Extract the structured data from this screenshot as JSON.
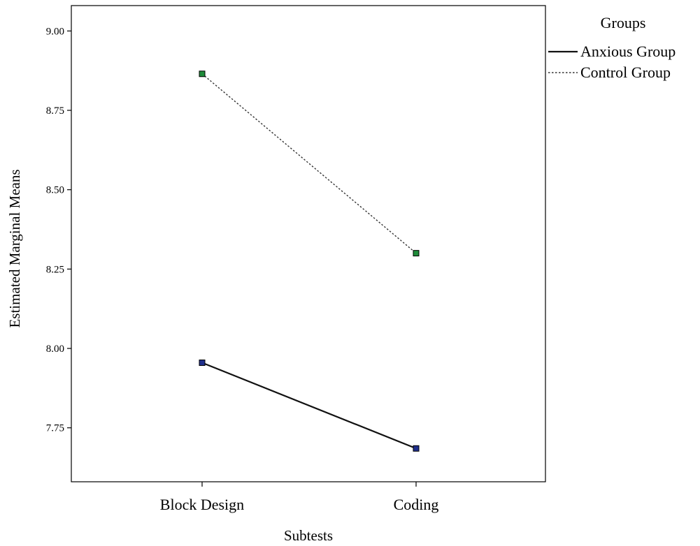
{
  "chart_data": {
    "type": "line",
    "categories": [
      "Block Design",
      "Coding"
    ],
    "series": [
      {
        "name": "Anxious Group",
        "values": [
          7.955,
          7.685
        ],
        "line_style": "solid",
        "marker_color": "#1f2f8c"
      },
      {
        "name": "Control Group",
        "values": [
          8.865,
          8.3
        ],
        "line_style": "dotted",
        "marker_color": "#1f8c3a"
      }
    ],
    "xlabel": "Subtests",
    "ylabel": "Estimated Marginal Means",
    "ylim": [
      7.58,
      9.08
    ],
    "yticks": [
      7.75,
      8.0,
      8.25,
      8.5,
      8.75,
      9.0
    ],
    "ytick_labels": [
      "7.75",
      "8.00",
      "8.25",
      "8.50",
      "8.75",
      "9.00"
    ],
    "legend": {
      "title": "Groups",
      "placement": "top-right, outside plot area"
    },
    "grid": false
  }
}
